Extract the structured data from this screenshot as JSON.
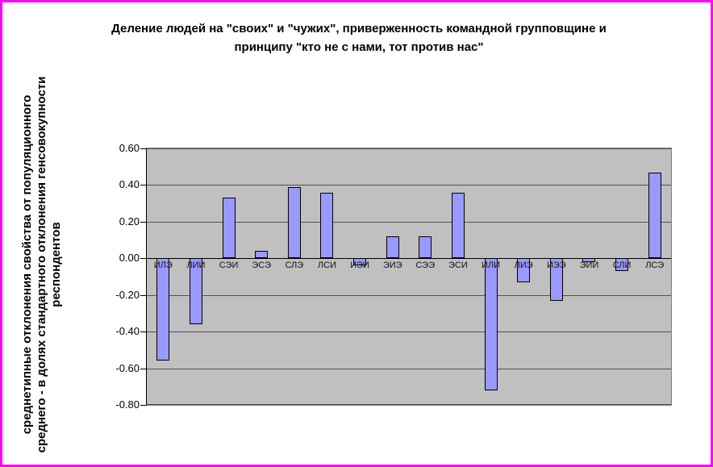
{
  "colors": {
    "frame_border": "#FF00FF",
    "bar_fill": "#9999FF",
    "bar_border": "#000000",
    "plot_bg": "#C0C0C0",
    "gridline": "#505050",
    "axis": "#000000"
  },
  "chart_data": {
    "type": "bar",
    "title": "Деление людей на \"своих\" и \"чужих\", приверженность командной групповщине и принципу \"кто не с нами, тот против нас\"",
    "title_lines": [
      "Деление людей на \"своих\" и \"чужих\", приверженность командной групповщине и",
      "принципу \"кто не с нами, тот против нас\""
    ],
    "xlabel": "",
    "ylabel": "среднетипные отклонения свойства от популяционного среднего - в долях стандартного отклонения генсовокупности респондентов",
    "categories": [
      "ИЛЭ",
      "ЛИИ",
      "СЭИ",
      "ЭСЭ",
      "СЛЭ",
      "ЛСИ",
      "ИЭИ",
      "ЭИЭ",
      "СЭЭ",
      "ЭСИ",
      "ИЛИ",
      "ЛИЭ",
      "ИЭЭ",
      "ЭИИ",
      "СЛИ",
      "ЛСЭ"
    ],
    "values": [
      -0.56,
      -0.36,
      0.33,
      0.04,
      0.39,
      0.36,
      -0.04,
      0.12,
      0.12,
      0.36,
      -0.72,
      -0.13,
      -0.23,
      -0.02,
      -0.07,
      0.47
    ],
    "ylim": [
      -0.8,
      0.6
    ],
    "ytick_step": 0.2,
    "yticks": [
      "0.60",
      "0.40",
      "0.20",
      "0.00",
      "-0.20",
      "-0.40",
      "-0.60",
      "-0.80"
    ],
    "grid": true,
    "legend": "none"
  }
}
